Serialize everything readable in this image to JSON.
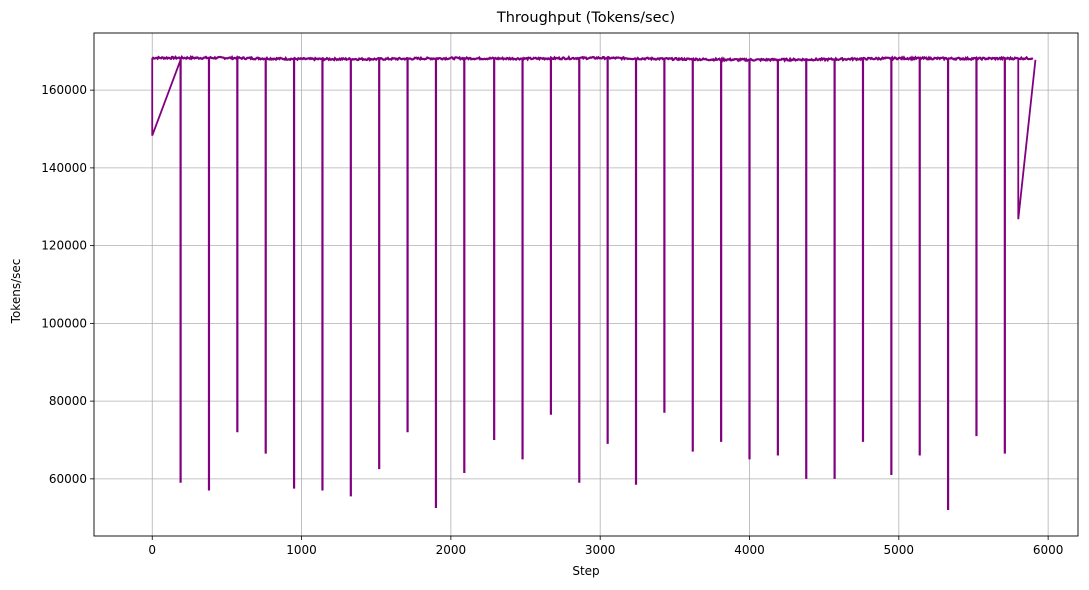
{
  "chart_data": {
    "type": "line",
    "title": "Throughput (Tokens/sec)",
    "xlabel": "Step",
    "ylabel": "Tokens/sec",
    "xlim": [
      -390,
      6200
    ],
    "ylim": [
      45300,
      174700
    ],
    "xticks": [
      0,
      1000,
      2000,
      3000,
      4000,
      5000,
      6000
    ],
    "yticks": [
      60000,
      80000,
      100000,
      120000,
      140000,
      160000
    ],
    "grid": true,
    "legend": "none",
    "series": [
      {
        "color": "#800080",
        "baseline": [
          [
            0,
            168300
          ],
          [
            500,
            168300
          ],
          [
            1000,
            168000
          ],
          [
            1500,
            168000
          ],
          [
            2000,
            168200
          ],
          [
            2500,
            168100
          ],
          [
            3000,
            168300
          ],
          [
            3500,
            168000
          ],
          [
            4000,
            167800
          ],
          [
            4500,
            167900
          ],
          [
            5000,
            168200
          ],
          [
            5500,
            168100
          ],
          [
            5900,
            168200
          ]
        ],
        "start_segment": [
          [
            0,
            148300
          ],
          [
            190,
            167800
          ]
        ],
        "end_segment": [
          [
            5800,
            126800
          ],
          [
            5915,
            167800
          ]
        ],
        "spikes": [
          {
            "x": 190,
            "y": 59000
          },
          {
            "x": 380,
            "y": 57000
          },
          {
            "x": 570,
            "y": 72000
          },
          {
            "x": 760,
            "y": 66500
          },
          {
            "x": 950,
            "y": 57500
          },
          {
            "x": 1140,
            "y": 57000
          },
          {
            "x": 1330,
            "y": 55500
          },
          {
            "x": 1520,
            "y": 62500
          },
          {
            "x": 1710,
            "y": 72000
          },
          {
            "x": 1900,
            "y": 52500
          },
          {
            "x": 2090,
            "y": 61500
          },
          {
            "x": 2290,
            "y": 70000
          },
          {
            "x": 2480,
            "y": 65000
          },
          {
            "x": 2670,
            "y": 76500
          },
          {
            "x": 2860,
            "y": 59000
          },
          {
            "x": 3050,
            "y": 69000
          },
          {
            "x": 3240,
            "y": 58500
          },
          {
            "x": 3430,
            "y": 77000
          },
          {
            "x": 3620,
            "y": 67000
          },
          {
            "x": 3810,
            "y": 69500
          },
          {
            "x": 4000,
            "y": 65000
          },
          {
            "x": 4190,
            "y": 66000
          },
          {
            "x": 4380,
            "y": 60000
          },
          {
            "x": 4570,
            "y": 60000
          },
          {
            "x": 4760,
            "y": 69500
          },
          {
            "x": 4950,
            "y": 61000
          },
          {
            "x": 5140,
            "y": 66000
          },
          {
            "x": 5330,
            "y": 52000
          },
          {
            "x": 5520,
            "y": 71000
          },
          {
            "x": 5710,
            "y": 66500
          }
        ]
      }
    ]
  }
}
